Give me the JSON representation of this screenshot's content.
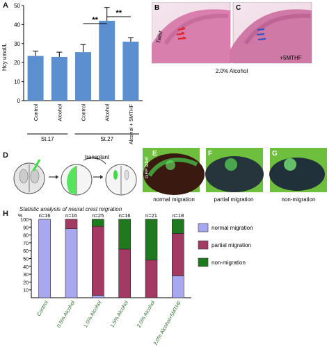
{
  "panel_letters": {
    "a": "A",
    "b": "B",
    "c": "C",
    "d": "D",
    "e": "E",
    "f": "F",
    "g": "G",
    "h": "H"
  },
  "panel_a": {
    "ylabel": "Hcy umol/L",
    "groups": [
      {
        "name": "St.17",
        "span": [
          0,
          1
        ]
      },
      {
        "name": "St.27",
        "span": [
          2,
          4
        ]
      }
    ],
    "significance": [
      {
        "label": "**",
        "from": 2,
        "to": 3
      },
      {
        "label": "**",
        "from": 3,
        "to": 4
      }
    ]
  },
  "panel_bc": {
    "b_text": "Twist",
    "c_text": "+5MTHF",
    "caption": "2.0% Alcohol",
    "colors": {
      "embryo": "#d97fae",
      "red_arrow": "#e0232a",
      "blue_arrow": "#3a4fc2"
    }
  },
  "panel_d": {
    "transplant_label": "transplant",
    "colors": {
      "gfp": "#39e043"
    }
  },
  "panel_efg": {
    "gfp_label": "GFP label",
    "captions": [
      "normal migration",
      "partial migration",
      "non-migration"
    ]
  },
  "panel_h": {
    "title": "Statistic analysis of neural crest migration"
  },
  "chart_data": [
    {
      "type": "bar",
      "categories": [
        "Control",
        "Alcohol",
        "Control",
        "Alcohol",
        "Alcohol + 5MTHF"
      ],
      "values": [
        23.5,
        23,
        25.5,
        42,
        31
      ],
      "errors": [
        2.5,
        2.5,
        4,
        7,
        2
      ],
      "ylabel": "Hcy umol/L",
      "ylim": [
        0,
        50
      ],
      "yticks": [
        0,
        10,
        20,
        30,
        40,
        50
      ],
      "color": "#5b8fd0"
    },
    {
      "type": "bar",
      "stacked": true,
      "title": "Statistic analysis of neural crest migration",
      "ylabel": "%",
      "ylim": [
        0,
        100
      ],
      "yticks": [
        10,
        20,
        30,
        40,
        50,
        60,
        70,
        80,
        90,
        100
      ],
      "categories": [
        "Control",
        "0.5% Alcohol",
        "1.0% Alcohol",
        "1.5% Alcohol",
        "2.0% Alcohol",
        "2.0% Alcohol+5MTHF"
      ],
      "n_labels": [
        "n=16",
        "n=16",
        "n=25",
        "n=16",
        "n=21",
        "n=18"
      ],
      "series": [
        {
          "name": "normal migration",
          "color": "#a8a8f0",
          "values": [
            100,
            88,
            3,
            0,
            0,
            28
          ]
        },
        {
          "name": "partial migration",
          "color": "#a33a63",
          "values": [
            0,
            12,
            88,
            62,
            48,
            54
          ]
        },
        {
          "name": "non-migration",
          "color": "#1f7a1f",
          "values": [
            0,
            0,
            9,
            38,
            52,
            18
          ]
        }
      ],
      "legend": "right"
    }
  ]
}
